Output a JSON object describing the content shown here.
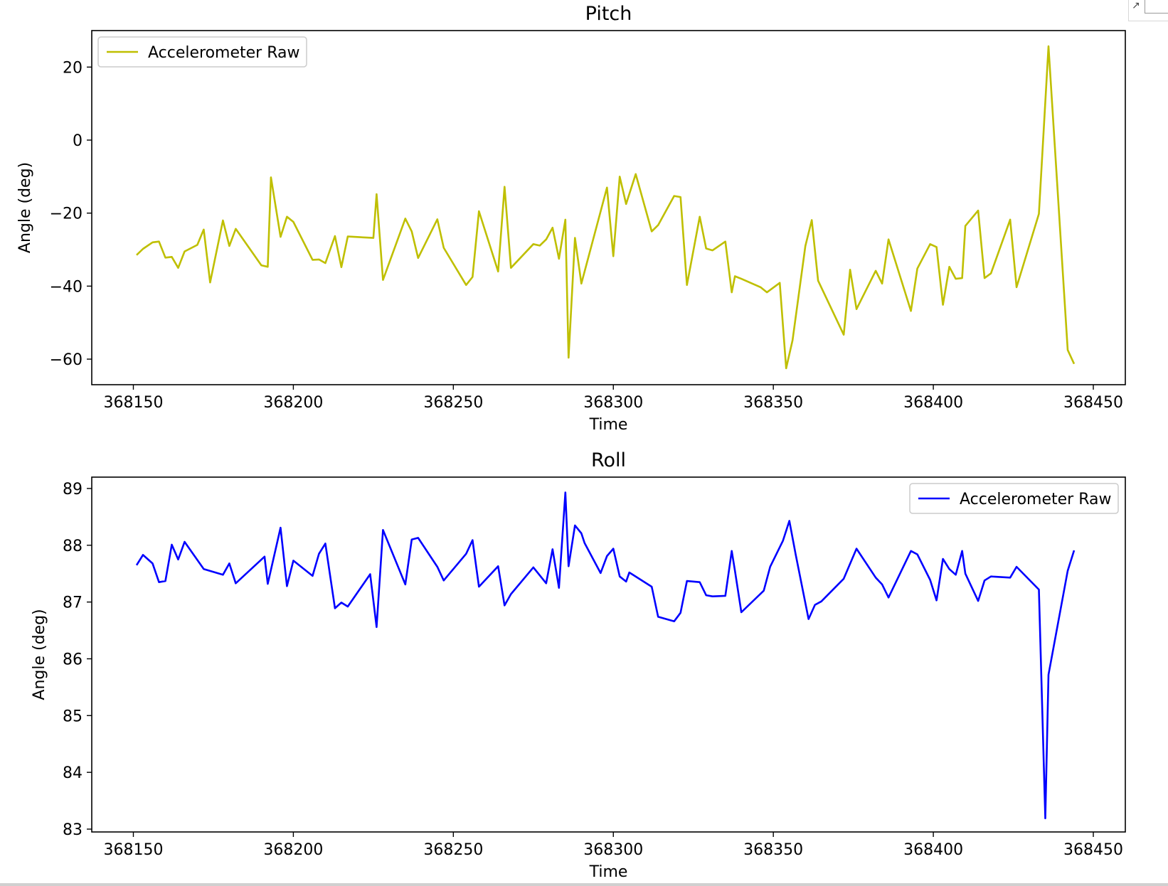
{
  "chart_data": [
    {
      "type": "line",
      "title": "Pitch",
      "xlabel": "Time",
      "ylabel": "Angle (deg)",
      "xlim": [
        368137,
        368460
      ],
      "ylim": [
        -67,
        30
      ],
      "xticks": [
        368150,
        368200,
        368250,
        368300,
        368350,
        368400,
        368450
      ],
      "yticks": [
        20,
        0,
        -20,
        -40,
        -60
      ],
      "legend": "upper left",
      "series": [
        {
          "name": "Accelerometer Raw",
          "color": "#bfbf00",
          "x": [
            368151,
            368153,
            368156,
            368158,
            368160,
            368162,
            368164,
            368166,
            368170,
            368172,
            368174,
            368178,
            368180,
            368182,
            368190,
            368192,
            368193,
            368196,
            368198,
            368200,
            368206,
            368208,
            368210,
            368213,
            368215,
            368217,
            368225,
            368226,
            368228,
            368235,
            368237,
            368239,
            368245,
            368247,
            368254,
            368256,
            368258,
            368264,
            368266,
            368268,
            368275,
            368277,
            368279,
            368281,
            368283,
            368285,
            368286,
            368288,
            368290,
            368298,
            368300,
            368302,
            368304,
            368307,
            368312,
            368314,
            368319,
            368321,
            368323,
            368327,
            368329,
            368331,
            368335,
            368337,
            368338,
            368340,
            368346,
            368348,
            368352,
            368354,
            368356,
            368360,
            368362,
            368364,
            368372,
            368374,
            368376,
            368382,
            368384,
            368386,
            368393,
            368395,
            368399,
            368401,
            368403,
            368405,
            368407,
            368409,
            368410,
            368414,
            368416,
            368418,
            368424,
            368426,
            368433,
            368436,
            368442,
            368444
          ],
          "y": [
            -31.5,
            -29.8,
            -28,
            -27.8,
            -32.2,
            -32,
            -35,
            -30.5,
            -28.7,
            -24.5,
            -39,
            -22,
            -29,
            -24.3,
            -34.3,
            -34.7,
            -10.2,
            -26.5,
            -21,
            -22.4,
            -32.8,
            -32.7,
            -33.7,
            -26.3,
            -34.8,
            -26.4,
            -26.8,
            -14.8,
            -38.3,
            -21.5,
            -25,
            -32.3,
            -21.7,
            -29.5,
            -39.7,
            -37.5,
            -19.5,
            -36,
            -12.8,
            -35,
            -28.5,
            -28.9,
            -27.2,
            -24,
            -32.5,
            -21.8,
            -59.6,
            -26.8,
            -39.3,
            -13,
            -31.8,
            -10,
            -17.5,
            -9.3,
            -25,
            -23.3,
            -15.3,
            -15.6,
            -39.7,
            -21,
            -29.7,
            -30.2,
            -27.8,
            -41.7,
            -37.3,
            -38,
            -40.3,
            -41.7,
            -39.1,
            -62.5,
            -54.8,
            -29,
            -21.9,
            -38.5,
            -53.3,
            -35.5,
            -46.3,
            -35.8,
            -39.3,
            -27.2,
            -46.8,
            -35.2,
            -28.5,
            -29.3,
            -45.1,
            -34.7,
            -38,
            -37.8,
            -23.5,
            -19.3,
            -37.8,
            -36.5,
            -21.8,
            -40.3,
            -20.2,
            25.7,
            -57.5,
            -61.3
          ]
        }
      ]
    },
    {
      "type": "line",
      "title": "Roll",
      "xlabel": "Time",
      "ylabel": "Angle (deg)",
      "xlim": [
        368137,
        368460
      ],
      "ylim": [
        82.95,
        89.2
      ],
      "xticks": [
        368150,
        368200,
        368250,
        368300,
        368350,
        368400,
        368450
      ],
      "yticks": [
        89,
        88,
        87,
        86,
        85,
        84,
        83
      ],
      "legend": "upper right",
      "series": [
        {
          "name": "Accelerometer Raw",
          "color": "#0000ff",
          "x": [
            368151,
            368153,
            368156,
            368158,
            368160,
            368162,
            368164,
            368166,
            368172,
            368178,
            368180,
            368182,
            368191,
            368192,
            368196,
            368198,
            368200,
            368206,
            368208,
            368210,
            368213,
            368215,
            368217,
            368224,
            368226,
            368228,
            368235,
            368237,
            368239,
            368245,
            368247,
            368254,
            368256,
            368258,
            368264,
            368266,
            368268,
            368275,
            368279,
            368281,
            368283,
            368285,
            368286,
            368288,
            368290,
            368291,
            368296,
            368298,
            368300,
            368302,
            368304,
            368305,
            368312,
            368314,
            368319,
            368321,
            368323,
            368327,
            368329,
            368331,
            368335,
            368337,
            368338,
            368340,
            368347,
            368349,
            368353,
            368355,
            368357,
            368361,
            368363,
            368365,
            368372,
            368376,
            368382,
            368384,
            368386,
            368393,
            368395,
            368399,
            368401,
            368403,
            368405,
            368407,
            368409,
            368410,
            368414,
            368416,
            368418,
            368424,
            368426,
            368433,
            368435,
            368436,
            368442,
            368444
          ],
          "y": [
            87.65,
            87.83,
            87.68,
            87.35,
            87.37,
            88.01,
            87.75,
            88.06,
            87.58,
            87.48,
            87.68,
            87.33,
            87.8,
            87.32,
            88.31,
            87.28,
            87.73,
            87.46,
            87.85,
            88.03,
            86.89,
            86.99,
            86.92,
            87.49,
            86.56,
            88.27,
            87.31,
            88.1,
            88.13,
            87.62,
            87.38,
            87.85,
            88.09,
            87.27,
            87.63,
            86.94,
            87.14,
            87.61,
            87.33,
            87.93,
            87.25,
            88.93,
            87.63,
            88.35,
            88.21,
            88.04,
            87.51,
            87.81,
            87.94,
            87.45,
            87.36,
            87.52,
            87.27,
            86.74,
            86.66,
            86.81,
            87.37,
            87.35,
            87.12,
            87.1,
            87.11,
            87.9,
            87.55,
            86.82,
            87.2,
            87.62,
            88.08,
            88.43,
            87.83,
            86.7,
            86.95,
            87.01,
            87.41,
            87.94,
            87.43,
            87.31,
            87.08,
            87.9,
            87.84,
            87.39,
            87.03,
            87.76,
            87.58,
            87.48,
            87.9,
            87.5,
            87.02,
            87.38,
            87.45,
            87.43,
            87.62,
            87.22,
            83.19,
            85.72,
            87.55,
            87.91
          ]
        }
      ]
    }
  ]
}
